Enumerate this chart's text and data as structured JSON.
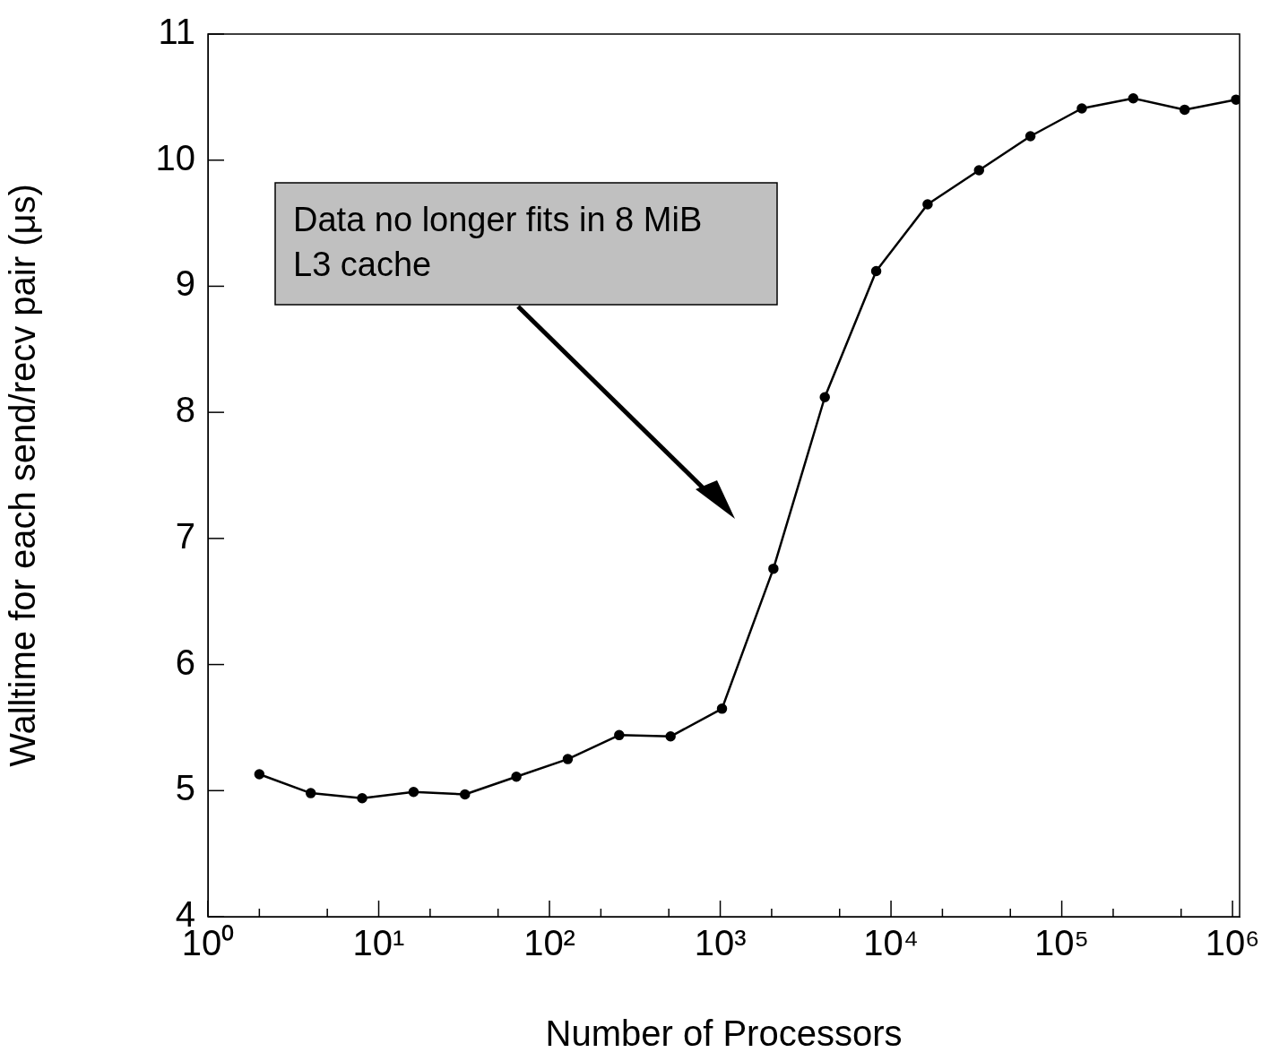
{
  "chart_data": {
    "type": "line",
    "xlabel": "Number of Processors",
    "ylabel": "Walltime for each send/recv pair (μs)",
    "x": [
      2,
      4,
      8,
      16,
      32,
      64,
      128,
      256,
      512,
      1024,
      2048,
      4096,
      8192,
      16384,
      32768,
      65536,
      131072,
      262144,
      524288,
      1048576
    ],
    "series": [
      {
        "color": "#000000",
        "values": [
          5.13,
          4.98,
          4.94,
          4.99,
          4.97,
          5.11,
          5.25,
          5.44,
          5.43,
          5.65,
          6.76,
          8.12,
          9.12,
          9.65,
          9.92,
          10.19,
          10.41,
          10.49,
          10.4,
          10.48
        ]
      }
    ],
    "log": "x",
    "xlim": [
      1,
      1100000
    ],
    "xticks": [
      {
        "value": 1,
        "label": "10⁰"
      },
      {
        "value": 2,
        "label": null
      },
      {
        "value": 5,
        "label": null
      },
      {
        "value": 10,
        "label": "10¹"
      },
      {
        "value": 20,
        "label": null
      },
      {
        "value": 50,
        "label": null
      },
      {
        "value": 100,
        "label": "10²"
      },
      {
        "value": 200,
        "label": null
      },
      {
        "value": 500,
        "label": null
      },
      {
        "value": 1000,
        "label": "10³"
      },
      {
        "value": 2000,
        "label": null
      },
      {
        "value": 5000,
        "label": null
      },
      {
        "value": 10000,
        "label": "10⁴"
      },
      {
        "value": 20000,
        "label": null
      },
      {
        "value": 50000,
        "label": null
      },
      {
        "value": 100000,
        "label": "10⁵"
      },
      {
        "value": 200000,
        "label": null
      },
      {
        "value": 500000,
        "label": null
      },
      {
        "value": 1000000,
        "label": "10⁶"
      }
    ],
    "ylim": [
      4,
      11
    ],
    "yticks": [
      4,
      5,
      6,
      7,
      8,
      9,
      10,
      11
    ],
    "marker": "circle",
    "line_style": "solid",
    "grid": false,
    "legend": false,
    "annotations": [
      "Data no longer fits in 8 MiB L3 cache"
    ]
  }
}
